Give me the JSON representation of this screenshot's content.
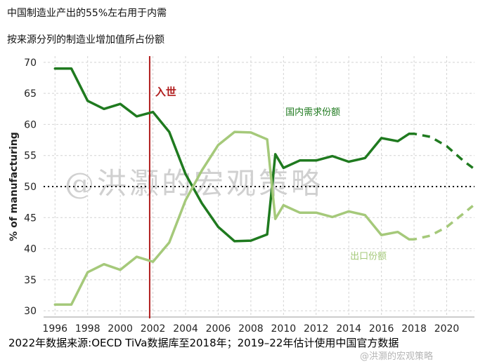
{
  "header": {
    "title": "中国制造业产出的55%左右用于内需",
    "subtitle": "按来源分列的制造业增加值所占份额"
  },
  "footer": {
    "source": "2022年数据来源:OECD TiVa数据库至2018年；2019–22年估计使用中国官方数据",
    "credit": "@洪灏的宏观策略"
  },
  "watermark": "@洪灏的宏观策略",
  "colors": {
    "domestic": "#1f7a1f",
    "export": "#a5c97a",
    "wto_line": "#b01c1c",
    "grid": "#d4d4d4"
  },
  "chart_data": {
    "type": "line",
    "ylabel": "% of manufacturing",
    "xlabel": "",
    "xlim": [
      1995.3,
      2021.7
    ],
    "ylim": [
      29,
      71
    ],
    "x_ticks": [
      1996,
      1998,
      2000,
      2002,
      2004,
      2006,
      2008,
      2010,
      2012,
      2014,
      2016,
      2018,
      2020
    ],
    "y_ticks": [
      30,
      35,
      40,
      45,
      50,
      55,
      60,
      65,
      70
    ],
    "grid": true,
    "reference_line": {
      "y": 50,
      "style": "dotted"
    },
    "event": {
      "x": 2001.8,
      "label": "入世"
    },
    "series": [
      {
        "name": "国内需求份额",
        "label_x": 2011.8,
        "label_y": 61.5,
        "points": [
          [
            1996,
            69
          ],
          [
            1997,
            69
          ],
          [
            1998,
            63.8
          ],
          [
            1999,
            62.5
          ],
          [
            2000,
            63.3
          ],
          [
            2001,
            61.3
          ],
          [
            2002,
            62
          ],
          [
            2003,
            58.8
          ],
          [
            2004,
            52
          ],
          [
            2005,
            47.3
          ],
          [
            2006,
            43.5
          ],
          [
            2007,
            41.2
          ],
          [
            2008,
            41.3
          ],
          [
            2009,
            42.3
          ],
          [
            2009.5,
            55.2
          ],
          [
            2010,
            53
          ],
          [
            2011,
            54.2
          ],
          [
            2012,
            54.2
          ],
          [
            2013,
            54.9
          ],
          [
            2014,
            54
          ],
          [
            2015,
            54.6
          ],
          [
            2016,
            57.8
          ],
          [
            2017,
            57.3
          ],
          [
            2017.7,
            58.5
          ]
        ],
        "projection": [
          [
            2017.7,
            58.5
          ],
          [
            2018,
            58.5
          ],
          [
            2019,
            58
          ],
          [
            2020,
            56.5
          ],
          [
            2021,
            54.2
          ],
          [
            2021.6,
            53
          ]
        ]
      },
      {
        "name": "出口份额",
        "label_x": 2015.2,
        "label_y": 38.3,
        "points": [
          [
            1996,
            31
          ],
          [
            1997,
            31
          ],
          [
            1998,
            36.2
          ],
          [
            1999,
            37.5
          ],
          [
            2000,
            36.6
          ],
          [
            2001,
            38.7
          ],
          [
            2002,
            37.9
          ],
          [
            2003,
            41
          ],
          [
            2004,
            47.8
          ],
          [
            2005,
            52.6
          ],
          [
            2006,
            56.7
          ],
          [
            2007,
            58.8
          ],
          [
            2008,
            58.7
          ],
          [
            2009,
            57.6
          ],
          [
            2009.5,
            44.8
          ],
          [
            2010,
            47
          ],
          [
            2011,
            45.8
          ],
          [
            2012,
            45.8
          ],
          [
            2013,
            45.1
          ],
          [
            2014,
            46
          ],
          [
            2015,
            45.4
          ],
          [
            2016,
            42.2
          ],
          [
            2017,
            42.7
          ],
          [
            2017.7,
            41.5
          ]
        ],
        "projection": [
          [
            2017.7,
            41.5
          ],
          [
            2018,
            41.5
          ],
          [
            2019,
            42.1
          ],
          [
            2020,
            43.5
          ],
          [
            2021,
            45.6
          ],
          [
            2021.6,
            46.9
          ]
        ]
      }
    ]
  }
}
